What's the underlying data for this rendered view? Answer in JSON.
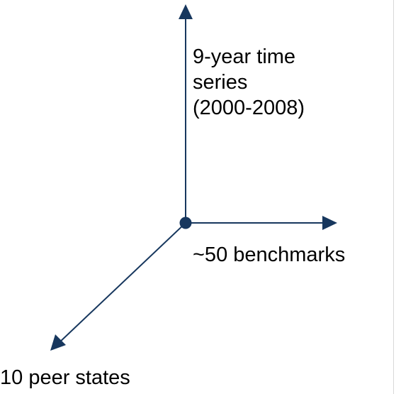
{
  "colors": {
    "axis": "#17375e",
    "text": "#000000",
    "background": "#ffffff"
  },
  "axes": {
    "time": {
      "lines": [
        "9-year time",
        "series",
        "(2000-2008)"
      ]
    },
    "benchmarks": {
      "label": "~50 benchmarks"
    },
    "states": {
      "label": "10 peer states"
    }
  }
}
